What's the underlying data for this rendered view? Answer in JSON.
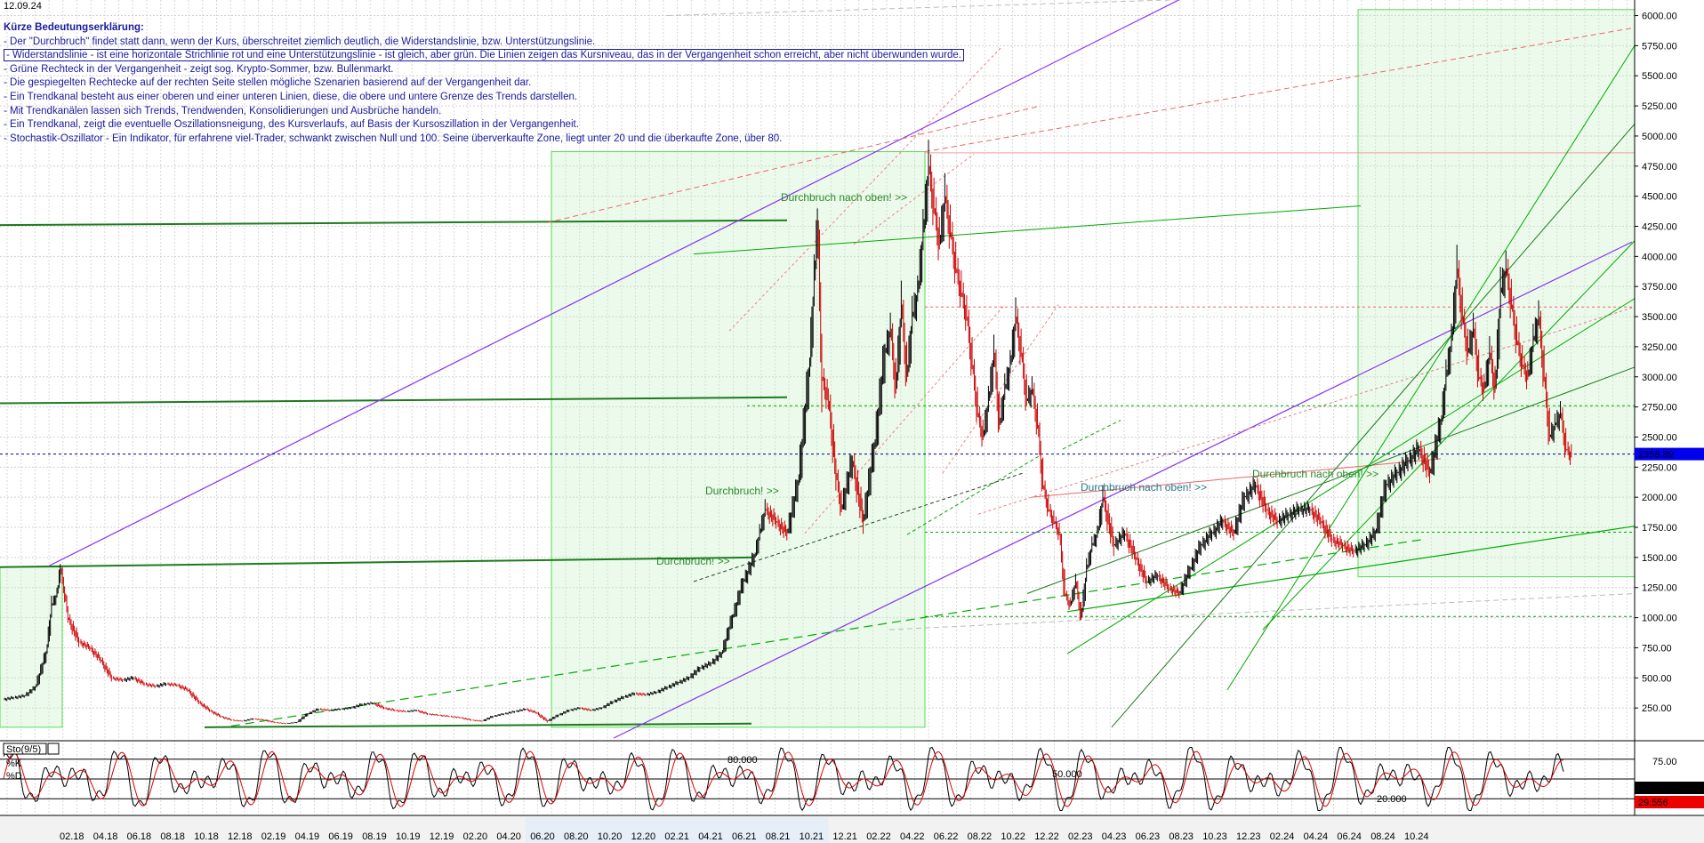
{
  "header": {
    "date": "12.09.24"
  },
  "legend": {
    "title": "Kürze Bedeutungserklärung:",
    "items": [
      "- Der \"Durchbruch\" findet statt dann, wenn der Kurs, überschreitet ziemlich deutlich, die Widerstandslinie, bzw. Unterstützungslinie.",
      "- Widerstandslinie - ist eine horizontale Strichlinie rot und eine Unterstützungslinie - ist gleich, aber grün. Die Linien zeigen das Kursniveau, das in der Vergangenheit schon erreicht, aber nicht überwunden wurde.",
      "- Grüne Rechteck in der Vergangenheit - zeigt sog. Krypto-Sommer, bzw. Bullenmarkt.",
      "- Die gespiegelten Rechtecke auf der rechten Seite stellen mögliche Szenarien basierend auf der Vergangenheit dar.",
      "- Ein Trendkanal besteht aus einer oberen und einer unteren Linien, diese, die obere und untere Grenze des Trends darstellen.",
      "- Mit Trendkanälen lassen sich Trends, Trendwenden, Konsolidierungen und Ausbrüche handeln.",
      "- Ein Trendkanal, zeigt die eventuelle Oszillationsneigung, des Kursverlaufs, auf Basis der Kursoszillation in der Vergangenheit.",
      "- Stochastik-Oszillator - Ein Indikator, für erfahrene viel-Trader, schwankt zwischen Null und 100. Seine überverkaufte Zone, liegt unter 20 und die überkaufte Zone, über 80."
    ]
  },
  "annotations": [
    "Durchbruch nach oben! >>",
    "Durchbruch! >>",
    "Durchbruch! >>",
    "Durchbruch nach oben! >>",
    "Durchbruch nach oben! >>"
  ],
  "stoch": {
    "label": "Sto(9/5)",
    "k_label": "%K",
    "d_label": "%D",
    "k_value": "40.067",
    "d_value": "29.556",
    "level_80": "80.000",
    "level_50": "50.000",
    "level_20": "20.000"
  },
  "colors": {
    "candle_up": "#000000",
    "candle_down": "#cc0000",
    "support": "#00aa00",
    "resistance": "#ee6666",
    "channel": "#8833ee",
    "price_tag": "#0000ee",
    "k_tag": "#000000",
    "d_tag": "#ee0000"
  },
  "chart_data": {
    "type": "candlestick",
    "current_price": "2358.89",
    "ylim": [
      0,
      6100
    ],
    "yticks": [
      "6000.00",
      "5750.00",
      "5500.00",
      "5250.00",
      "5000.00",
      "4750.00",
      "4500.00",
      "4250.00",
      "4000.00",
      "3750.00",
      "3500.00",
      "3250.00",
      "3000.00",
      "2750.00",
      "2500.00",
      "2250.00",
      "2000.00",
      "1750.00",
      "1500.00",
      "1250.00",
      "1000.00",
      "750.00",
      "500.00",
      "250.00"
    ],
    "xticks": [
      "02.18",
      "04.18",
      "06.18",
      "08.18",
      "10.18",
      "12.18",
      "02.19",
      "04.19",
      "06.19",
      "08.19",
      "10.19",
      "12.19",
      "02.20",
      "04.20",
      "06.20",
      "08.20",
      "10.20",
      "12.20",
      "02.21",
      "04.21",
      "06.21",
      "08.21",
      "10.21",
      "12.21",
      "02.22",
      "04.22",
      "06.22",
      "08.22",
      "10.22",
      "12.22",
      "02.23",
      "04.23",
      "06.23",
      "08.23",
      "10.23",
      "12.23",
      "02.24",
      "04.24",
      "06.24",
      "08.24",
      "10.24"
    ],
    "price_path": [
      [
        0,
        320
      ],
      [
        20,
        350
      ],
      [
        30,
        420
      ],
      [
        40,
        700
      ],
      [
        45,
        1100
      ],
      [
        50,
        1200
      ],
      [
        53,
        1410
      ],
      [
        57,
        1200
      ],
      [
        60,
        1000
      ],
      [
        70,
        800
      ],
      [
        80,
        750
      ],
      [
        90,
        650
      ],
      [
        100,
        500
      ],
      [
        110,
        480
      ],
      [
        120,
        500
      ],
      [
        130,
        450
      ],
      [
        140,
        430
      ],
      [
        150,
        450
      ],
      [
        160,
        440
      ],
      [
        170,
        400
      ],
      [
        180,
        300
      ],
      [
        190,
        230
      ],
      [
        200,
        180
      ],
      [
        210,
        150
      ],
      [
        220,
        140
      ],
      [
        230,
        160
      ],
      [
        240,
        150
      ],
      [
        250,
        130
      ],
      [
        260,
        120
      ],
      [
        270,
        130
      ],
      [
        280,
        200
      ],
      [
        290,
        240
      ],
      [
        300,
        230
      ],
      [
        310,
        240
      ],
      [
        320,
        250
      ],
      [
        330,
        280
      ],
      [
        340,
        290
      ],
      [
        350,
        250
      ],
      [
        360,
        230
      ],
      [
        370,
        220
      ],
      [
        380,
        230
      ],
      [
        390,
        200
      ],
      [
        400,
        190
      ],
      [
        410,
        180
      ],
      [
        420,
        170
      ],
      [
        430,
        150
      ],
      [
        440,
        140
      ],
      [
        450,
        180
      ],
      [
        460,
        200
      ],
      [
        470,
        220
      ],
      [
        480,
        240
      ],
      [
        490,
        210
      ],
      [
        500,
        140
      ],
      [
        510,
        190
      ],
      [
        520,
        230
      ],
      [
        530,
        250
      ],
      [
        540,
        230
      ],
      [
        550,
        250
      ],
      [
        560,
        300
      ],
      [
        570,
        340
      ],
      [
        580,
        370
      ],
      [
        590,
        360
      ],
      [
        600,
        380
      ],
      [
        610,
        420
      ],
      [
        620,
        460
      ],
      [
        630,
        500
      ],
      [
        640,
        580
      ],
      [
        650,
        620
      ],
      [
        660,
        700
      ],
      [
        670,
        1000
      ],
      [
        680,
        1300
      ],
      [
        690,
        1500
      ],
      [
        695,
        1700
      ],
      [
        700,
        1900
      ],
      [
        710,
        1800
      ],
      [
        720,
        1700
      ],
      [
        730,
        2100
      ],
      [
        740,
        3000
      ],
      [
        745,
        3800
      ],
      [
        748,
        4300
      ],
      [
        752,
        3000
      ],
      [
        758,
        2800
      ],
      [
        765,
        2200
      ],
      [
        770,
        1900
      ],
      [
        780,
        2300
      ],
      [
        790,
        1800
      ],
      [
        800,
        2400
      ],
      [
        810,
        3200
      ],
      [
        815,
        3400
      ],
      [
        820,
        2900
      ],
      [
        825,
        3600
      ],
      [
        830,
        3000
      ],
      [
        835,
        3500
      ],
      [
        840,
        3700
      ],
      [
        845,
        4200
      ],
      [
        850,
        4750
      ],
      [
        855,
        4400
      ],
      [
        860,
        4100
      ],
      [
        865,
        4500
      ],
      [
        870,
        4200
      ],
      [
        875,
        3900
      ],
      [
        880,
        3700
      ],
      [
        885,
        3500
      ],
      [
        890,
        3100
      ],
      [
        895,
        2700
      ],
      [
        900,
        2500
      ],
      [
        905,
        2800
      ],
      [
        910,
        3200
      ],
      [
        915,
        2600
      ],
      [
        920,
        2900
      ],
      [
        925,
        3100
      ],
      [
        930,
        3500
      ],
      [
        935,
        3200
      ],
      [
        940,
        2800
      ],
      [
        945,
        2900
      ],
      [
        950,
        2600
      ],
      [
        955,
        2100
      ],
      [
        960,
        1900
      ],
      [
        965,
        1800
      ],
      [
        970,
        1700
      ],
      [
        975,
        1200
      ],
      [
        980,
        1100
      ],
      [
        985,
        1300
      ],
      [
        990,
        1000
      ],
      [
        995,
        1400
      ],
      [
        1000,
        1600
      ],
      [
        1005,
        1700
      ],
      [
        1010,
        2000
      ],
      [
        1020,
        1600
      ],
      [
        1030,
        1700
      ],
      [
        1040,
        1500
      ],
      [
        1050,
        1300
      ],
      [
        1060,
        1350
      ],
      [
        1070,
        1250
      ],
      [
        1080,
        1200
      ],
      [
        1090,
        1400
      ],
      [
        1100,
        1600
      ],
      [
        1110,
        1700
      ],
      [
        1120,
        1800
      ],
      [
        1130,
        1700
      ],
      [
        1140,
        2000
      ],
      [
        1150,
        2100
      ],
      [
        1160,
        1900
      ],
      [
        1170,
        1800
      ],
      [
        1180,
        1850
      ],
      [
        1190,
        1900
      ],
      [
        1200,
        1900
      ],
      [
        1210,
        1800
      ],
      [
        1220,
        1650
      ],
      [
        1230,
        1600
      ],
      [
        1240,
        1550
      ],
      [
        1250,
        1600
      ],
      [
        1260,
        1700
      ],
      [
        1270,
        2100
      ],
      [
        1280,
        2200
      ],
      [
        1290,
        2300
      ],
      [
        1300,
        2400
      ],
      [
        1310,
        2200
      ],
      [
        1320,
        2600
      ],
      [
        1325,
        3000
      ],
      [
        1330,
        3300
      ],
      [
        1335,
        3900
      ],
      [
        1340,
        3500
      ],
      [
        1345,
        3200
      ],
      [
        1350,
        3400
      ],
      [
        1355,
        3000
      ],
      [
        1360,
        2900
      ],
      [
        1365,
        3200
      ],
      [
        1370,
        2900
      ],
      [
        1375,
        3700
      ],
      [
        1380,
        3900
      ],
      [
        1385,
        3600
      ],
      [
        1390,
        3300
      ],
      [
        1395,
        3100
      ],
      [
        1400,
        3000
      ],
      [
        1405,
        3300
      ],
      [
        1410,
        3500
      ],
      [
        1415,
        3000
      ],
      [
        1420,
        2500
      ],
      [
        1425,
        2600
      ],
      [
        1430,
        2700
      ],
      [
        1435,
        2400
      ],
      [
        1440,
        2350
      ]
    ]
  }
}
